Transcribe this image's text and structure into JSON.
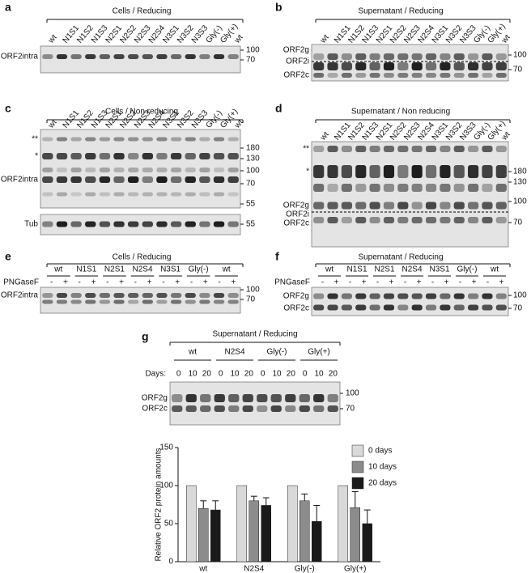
{
  "panels": [
    {
      "label": "a",
      "title": "Cells / Reducing",
      "lanes": [
        "wt",
        "N1S1",
        "N1S2",
        "N1S3",
        "N2S1",
        "N2S2",
        "N2S3",
        "N2S4",
        "N3S1",
        "N3S2",
        "N3S3",
        "Gly(-)",
        "Gly(+)",
        "wt"
      ],
      "left_labels": [
        "ORF2intra"
      ],
      "markers": [
        "100",
        "70"
      ]
    },
    {
      "label": "b",
      "title": "Supernatant / Reducing",
      "lanes": [
        "wt",
        "N1S1",
        "N1S2",
        "N1S3",
        "N2S1",
        "N2S2",
        "N2S3",
        "N2S4",
        "N3S1",
        "N3S2",
        "N3S3",
        "Gly(-)",
        "Gly(+)",
        "wt"
      ],
      "left_labels": [
        "ORF2g",
        "ORF2i",
        "ORF2c"
      ],
      "markers": [
        "100",
        "70"
      ]
    },
    {
      "label": "c",
      "title": "Cells / Non reducing",
      "lanes": [
        "wt",
        "N1S1",
        "N1S2",
        "N1S3",
        "N2S1",
        "N2S2",
        "N2S3",
        "N2S4",
        "N3S1",
        "N3S2",
        "N3S3",
        "Gly(-)",
        "Gly(+)",
        "wt"
      ],
      "left_labels": [
        "**",
        "*",
        "ORF2intra"
      ],
      "markers": [
        "180",
        "130",
        "100",
        "70",
        "55"
      ],
      "loading_label": "Tub",
      "loading_marker": "55"
    },
    {
      "label": "d",
      "title": "Supernatant / Non reducing",
      "lanes": [
        "wt",
        "N1S1",
        "N1S2",
        "N1S3",
        "N2S1",
        "N2S2",
        "N2S3",
        "N2S4",
        "N3S1",
        "N3S2",
        "N3S3",
        "Gly(-)",
        "Gly(+)",
        "wt"
      ],
      "left_labels": [
        "**",
        "*",
        "ORF2g",
        "ORF2i",
        "ORF2c"
      ],
      "markers": [
        "180",
        "130",
        "100",
        "70"
      ]
    },
    {
      "label": "e",
      "title": "Cells / Reducing",
      "groups": [
        "wt",
        "N1S1",
        "N2S1",
        "N2S4",
        "N3S1",
        "Gly(-)",
        "wt"
      ],
      "treatment": "PNGaseF",
      "treatment_states": [
        "-",
        "+"
      ],
      "left_labels": [
        "ORF2intra"
      ],
      "markers": [
        "100",
        "70"
      ]
    },
    {
      "label": "f",
      "title": "Supernatant / Reducing",
      "groups": [
        "wt",
        "N1S1",
        "N2S1",
        "N2S4",
        "N3S1",
        "Gly(-)",
        "wt"
      ],
      "treatment": "PNGaseF",
      "treatment_states": [
        "-",
        "+"
      ],
      "left_labels": [
        "ORF2g",
        "ORF2c"
      ],
      "markers": [
        "100",
        "70"
      ]
    },
    {
      "label": "g",
      "title": "Supernatant / Reducing",
      "groups": [
        "wt",
        "N2S4",
        "Gly(-)",
        "Gly(+)"
      ],
      "time_label": "Days:",
      "time_points": [
        "0",
        "10",
        "20"
      ],
      "left_labels": [
        "ORF2g",
        "ORF2c"
      ],
      "markers": [
        "100",
        "70"
      ]
    }
  ],
  "chart_data": {
    "type": "bar",
    "categories": [
      "wt",
      "N2S4",
      "Gly(-)",
      "Gly(+)"
    ],
    "series": [
      {
        "name": "0 days",
        "color": "#d9d9d9",
        "values": [
          100,
          100,
          100,
          100
        ],
        "errors": [
          0,
          0,
          0,
          0
        ]
      },
      {
        "name": "10 days",
        "color": "#8c8c8c",
        "values": [
          70,
          80,
          80,
          71
        ],
        "errors": [
          10,
          6,
          9,
          21
        ]
      },
      {
        "name": "20 days",
        "color": "#1a1a1a",
        "values": [
          68,
          74,
          53,
          50
        ],
        "errors": [
          12,
          10,
          21,
          18
        ]
      }
    ],
    "ylim": [
      0,
      150
    ],
    "yticks": [
      0,
      50,
      100,
      150
    ],
    "y_label": "Relative ORF2 protein amounts",
    "legend": "upper right"
  }
}
